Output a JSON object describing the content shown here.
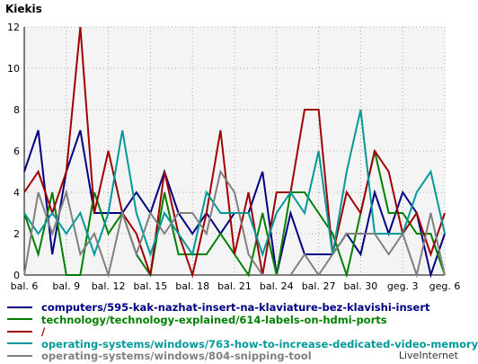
{
  "chart_data": {
    "type": "line",
    "title": "Kiekis",
    "ylim": [
      0,
      12
    ],
    "yticks": [
      0,
      2,
      4,
      6,
      8,
      10,
      12
    ],
    "x": [
      "bal. 6",
      "bal. 7",
      "bal. 8",
      "bal. 9",
      "bal. 10",
      "bal. 11",
      "bal. 12",
      "bal. 13",
      "bal. 14",
      "bal. 15",
      "bal. 16",
      "bal. 17",
      "bal. 18",
      "bal. 19",
      "bal. 20",
      "bal. 21",
      "bal. 22",
      "bal. 23",
      "bal. 24",
      "bal. 25",
      "bal. 26",
      "bal. 27",
      "bal. 28",
      "bal. 29",
      "bal. 30",
      "geg. 1",
      "geg. 2",
      "geg. 3",
      "geg. 4",
      "geg. 5",
      "geg. 6"
    ],
    "xtick_labels": [
      "bal. 6",
      "bal. 9",
      "bal. 12",
      "bal. 15",
      "bal. 18",
      "bal. 21",
      "bal. 24",
      "bal. 27",
      "bal. 30",
      "geg. 3",
      "geg. 6"
    ],
    "grid": true,
    "series": [
      {
        "name": "computers/595-kak-nazhat-insert-na-klaviature-bez-klavishi-insert",
        "color": "#000080",
        "values": [
          5,
          7,
          1,
          5,
          7,
          3,
          3,
          3,
          4,
          3,
          5,
          3,
          2,
          3,
          2,
          3,
          3,
          5,
          0,
          3,
          1,
          1,
          1,
          2,
          1,
          4,
          2,
          4,
          3,
          0,
          2
        ]
      },
      {
        "name": "technology/technology-explained/614-labels-on-hdmi-ports",
        "color": "#008000",
        "values": [
          3,
          1,
          4,
          0,
          0,
          4,
          2,
          3,
          1,
          0,
          4,
          1,
          1,
          1,
          2,
          1,
          0,
          3,
          0,
          4,
          4,
          3,
          2,
          0,
          3,
          6,
          3,
          3,
          2,
          2,
          0
        ]
      },
      {
        "name": "/",
        "color": "#a00000",
        "values": [
          4,
          5,
          3,
          5,
          12,
          3,
          6,
          3,
          2,
          0,
          5,
          2,
          0,
          3,
          7,
          1,
          4,
          0,
          4,
          4,
          8,
          8,
          1,
          4,
          3,
          6,
          5,
          2,
          3,
          1,
          3
        ]
      },
      {
        "name": "operating-systems/windows/763-how-to-increase-dedicated-video-memory",
        "color": "#009999",
        "values": [
          3,
          2,
          3,
          2,
          3,
          1,
          3,
          7,
          3,
          1,
          3,
          2,
          1,
          4,
          3,
          3,
          3,
          1,
          3,
          4,
          3,
          6,
          1,
          5,
          8,
          2,
          2,
          2,
          4,
          5,
          2
        ]
      },
      {
        "name": "operating-systems/windows/804-snipping-tool",
        "color": "#808080",
        "values": [
          0,
          4,
          2,
          4,
          1,
          2,
          0,
          3,
          1,
          3,
          2,
          3,
          3,
          2,
          5,
          4,
          1,
          0,
          0,
          0,
          1,
          0,
          1,
          2,
          2,
          2,
          1,
          2,
          0,
          3,
          0
        ]
      }
    ]
  },
  "legend": {
    "labels": [
      "computers/595-kak-nazhat-insert-na-klaviature-bez-klavishi-insert",
      "technology/technology-explained/614-labels-on-hdmi-ports",
      "/",
      "operating-systems/windows/763-how-to-increase-dedicated-video-memory",
      "operating-systems/windows/804-snipping-tool"
    ]
  },
  "brand": "LiveInternet"
}
